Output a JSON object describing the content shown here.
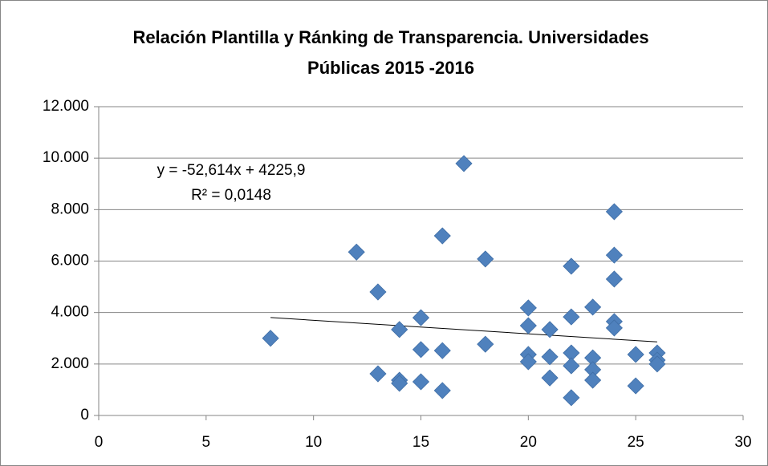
{
  "chart_data": {
    "type": "scatter",
    "title": [
      "Relación Plantilla y Ránking de Transparencia. Universidades",
      "Públicas 2015 -2016"
    ],
    "x": [
      8,
      12,
      13,
      13,
      14,
      14,
      14,
      15,
      15,
      15,
      16,
      16,
      16,
      17,
      18,
      18,
      20,
      20,
      20,
      20,
      21,
      21,
      21,
      22,
      22,
      22,
      22,
      22,
      23,
      23,
      23,
      23,
      24,
      24,
      24,
      24,
      24,
      25,
      25,
      26,
      26,
      26
    ],
    "values": [
      3000,
      6350,
      4800,
      1620,
      3340,
      1370,
      1250,
      3800,
      2560,
      1310,
      6980,
      2520,
      970,
      9790,
      6080,
      2770,
      4180,
      3490,
      2370,
      2090,
      3340,
      2280,
      1460,
      5800,
      3830,
      2430,
      1930,
      690,
      4210,
      2240,
      1780,
      1370,
      7920,
      6230,
      5300,
      3650,
      3400,
      2370,
      1150,
      2430,
      2150,
      2000
    ],
    "color": "#4f81bd",
    "xlim": [
      0,
      30
    ],
    "xticks": [
      0,
      5,
      10,
      15,
      20,
      25,
      30
    ],
    "ylim": [
      0,
      12000
    ],
    "yticks": [
      0,
      {
        "value": 2000,
        "label": "2.000"
      },
      {
        "value": 4000,
        "label": "4.000"
      },
      {
        "value": 6000,
        "label": "6.000"
      },
      {
        "value": 8000,
        "label": "8.000"
      },
      {
        "value": 10000,
        "label": "10.000"
      },
      {
        "value": 12000,
        "label": "12.000"
      }
    ],
    "grid": true,
    "trendline": {
      "x": [
        8,
        26
      ],
      "values": [
        3805,
        2858
      ],
      "equation": "y = -52,614x + 4225,9",
      "r2": "R² = 0,0148"
    }
  }
}
